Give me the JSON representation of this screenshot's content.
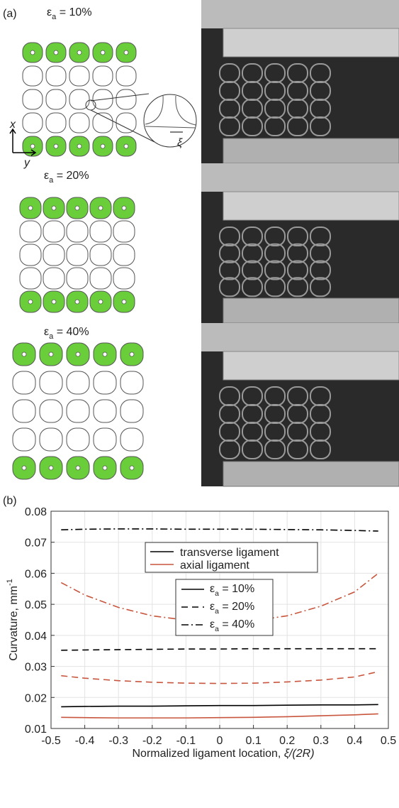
{
  "panel_a": {
    "label": "(a)",
    "states": [
      {
        "symbol": "ε",
        "subscript": "a",
        "text": " = 10%"
      },
      {
        "symbol": "ε",
        "subscript": "a",
        "text": " = 20%"
      },
      {
        "symbol": "ε",
        "subscript": "a",
        "text": " = 40%"
      }
    ],
    "axis_x": "x",
    "axis_y": "y",
    "inset_label": "ξ"
  },
  "panel_b": {
    "label": "(b)"
  },
  "chart_data": {
    "type": "line",
    "xlabel": {
      "text": "Normalized ligament location, ",
      "italic": "ξ/(2R)"
    },
    "ylabel": {
      "text": "Curvature, mm",
      "superscript": "-1"
    },
    "x": [
      -0.47,
      -0.4,
      -0.3,
      -0.2,
      -0.1,
      0,
      0.1,
      0.2,
      0.3,
      0.4,
      0.47
    ],
    "xlim": [
      -0.5,
      0.5
    ],
    "xticks": [
      -0.5,
      -0.4,
      -0.3,
      -0.2,
      -0.1,
      0,
      0.1,
      0.2,
      0.3,
      0.4,
      0.5
    ],
    "ylim": [
      0.01,
      0.08
    ],
    "yticks": [
      0.01,
      0.02,
      0.03,
      0.04,
      0.05,
      0.06,
      0.07,
      0.08
    ],
    "grid": true,
    "series": [
      {
        "color": "#000000",
        "linestyle": "solid",
        "values": [
          0.017,
          0.0171,
          0.0172,
          0.0172,
          0.0173,
          0.0174,
          0.0174,
          0.0175,
          0.0176,
          0.0176,
          0.0177
        ]
      },
      {
        "color": "#c8553d",
        "linestyle": "solid",
        "values": [
          0.0136,
          0.0135,
          0.0134,
          0.0134,
          0.0134,
          0.0135,
          0.0136,
          0.0138,
          0.0141,
          0.0144,
          0.0147
        ]
      },
      {
        "color": "#000000",
        "linestyle": "dashed",
        "values": [
          0.0352,
          0.0353,
          0.0354,
          0.0355,
          0.0356,
          0.0356,
          0.0357,
          0.0357,
          0.0357,
          0.0357,
          0.0357
        ]
      },
      {
        "color": "#c8553d",
        "linestyle": "dashed",
        "values": [
          0.027,
          0.0262,
          0.0254,
          0.0249,
          0.0246,
          0.0245,
          0.0246,
          0.025,
          0.0256,
          0.0266,
          0.0283
        ]
      },
      {
        "color": "#000000",
        "linestyle": "dashdot",
        "values": [
          0.074,
          0.0742,
          0.0743,
          0.0743,
          0.0742,
          0.0742,
          0.0742,
          0.0741,
          0.074,
          0.0738,
          0.0736
        ]
      },
      {
        "color": "#c8553d",
        "linestyle": "dashdot",
        "values": [
          0.057,
          0.053,
          0.049,
          0.0463,
          0.0449,
          0.0444,
          0.0447,
          0.0463,
          0.0494,
          0.054,
          0.06
        ]
      }
    ],
    "legend_ligament": [
      {
        "name": "transverse ligament",
        "color": "#000000"
      },
      {
        "name": "axial ligament",
        "color": "#c8553d"
      }
    ],
    "legend_strain": [
      {
        "symbol": "ε",
        "subscript": "a",
        "text": " = 10%",
        "linestyle": "solid"
      },
      {
        "symbol": "ε",
        "subscript": "a",
        "text": " = 20%",
        "linestyle": "dashed"
      },
      {
        "symbol": "ε",
        "subscript": "a",
        "text": " = 40%",
        "linestyle": "dashdot"
      }
    ]
  }
}
